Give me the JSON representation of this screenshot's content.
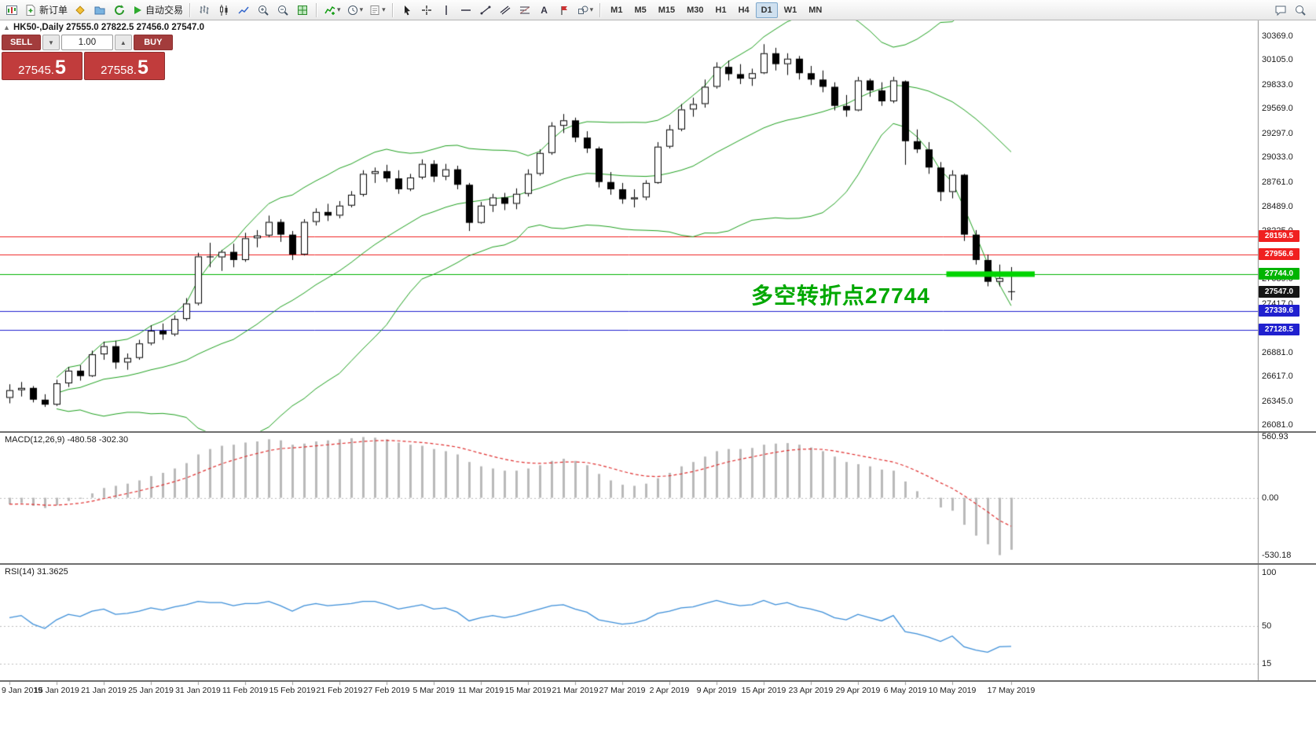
{
  "toolbar": {
    "new_order_label": "新订单",
    "autotrading_label": "自动交易",
    "text_tool_label": "A",
    "timeframes": [
      "M1",
      "M5",
      "M15",
      "M30",
      "H1",
      "H4",
      "D1",
      "W1",
      "MN"
    ],
    "active_timeframe": "D1"
  },
  "chart": {
    "title": "HK50-,Daily 27555.0 27822.5 27456.0 27547.0"
  },
  "one_click": {
    "sell_label": "SELL",
    "buy_label": "BUY",
    "volume": "1.00",
    "bid": "27545.5",
    "ask": "27558.5"
  },
  "annotation": {
    "text": "多空转折点27744",
    "color": "#00a800"
  },
  "price_scale": {
    "labels": [
      "30369.0",
      "30105.0",
      "29833.0",
      "29569.0",
      "29297.0",
      "29033.0",
      "28761.0",
      "28489.0",
      "28225.0",
      "27689.0",
      "27417.0",
      "26881.0",
      "26617.0",
      "26345.0",
      "26081.0"
    ],
    "badges": [
      {
        "text": "28159.5",
        "price": 28159.5,
        "bg": "#f02020",
        "kind": "level"
      },
      {
        "text": "27956.6",
        "price": 27956.6,
        "bg": "#f02020",
        "kind": "level"
      },
      {
        "text": "27744.0",
        "price": 27744.0,
        "bg": "#00b400",
        "kind": "level"
      },
      {
        "text": "27547.0",
        "price": 27547.0,
        "bg": "#151515",
        "kind": "current"
      },
      {
        "text": "27339.6",
        "price": 27339.6,
        "bg": "#2020cf",
        "kind": "level"
      },
      {
        "text": "27128.5",
        "price": 27128.5,
        "bg": "#2020cf",
        "kind": "level"
      }
    ]
  },
  "chart_data": {
    "type": "candlestick",
    "symbol": "HK50-",
    "period": "Daily",
    "current_bar": {
      "open": 27555.0,
      "high": 27822.5,
      "low": 27456.0,
      "close": 27547.0
    },
    "price_range": [
      26012,
      30542
    ],
    "candles": [
      [
        26380,
        26530,
        26320,
        26465
      ],
      [
        26465,
        26555,
        26395,
        26490
      ],
      [
        26490,
        26510,
        26330,
        26360
      ],
      [
        26360,
        26420,
        26280,
        26305
      ],
      [
        26305,
        26580,
        26290,
        26540
      ],
      [
        26540,
        26720,
        26500,
        26680
      ],
      [
        26680,
        26740,
        26570,
        26620
      ],
      [
        26620,
        26900,
        26610,
        26860
      ],
      [
        26860,
        27000,
        26800,
        26950
      ],
      [
        26950,
        27010,
        26700,
        26770
      ],
      [
        26770,
        26870,
        26690,
        26820
      ],
      [
        26820,
        27020,
        26800,
        26980
      ],
      [
        26980,
        27180,
        26960,
        27120
      ],
      [
        27120,
        27200,
        27020,
        27080
      ],
      [
        27080,
        27290,
        27060,
        27250
      ],
      [
        27250,
        27480,
        27230,
        27420
      ],
      [
        27420,
        27980,
        27400,
        27940
      ],
      [
        27940,
        28090,
        27820,
        27930
      ],
      [
        27930,
        28010,
        27780,
        27990
      ],
      [
        27990,
        28080,
        27820,
        27900
      ],
      [
        27900,
        28200,
        27880,
        28140
      ],
      [
        28140,
        28230,
        28040,
        28170
      ],
      [
        28170,
        28390,
        28150,
        28320
      ],
      [
        28320,
        28350,
        28100,
        28180
      ],
      [
        28180,
        28220,
        27900,
        27960
      ],
      [
        27960,
        28350,
        27950,
        28320
      ],
      [
        28320,
        28470,
        28280,
        28430
      ],
      [
        28430,
        28520,
        28330,
        28390
      ],
      [
        28390,
        28550,
        28360,
        28500
      ],
      [
        28500,
        28660,
        28480,
        28620
      ],
      [
        28620,
        28890,
        28600,
        28850
      ],
      [
        28850,
        28920,
        28750,
        28880
      ],
      [
        28880,
        28950,
        28760,
        28800
      ],
      [
        28800,
        28890,
        28630,
        28680
      ],
      [
        28680,
        28850,
        28660,
        28810
      ],
      [
        28810,
        29010,
        28790,
        28960
      ],
      [
        28960,
        29000,
        28760,
        28820
      ],
      [
        28820,
        28960,
        28780,
        28900
      ],
      [
        28900,
        28940,
        28680,
        28730
      ],
      [
        28730,
        28750,
        28220,
        28310
      ],
      [
        28310,
        28540,
        28300,
        28500
      ],
      [
        28500,
        28630,
        28430,
        28590
      ],
      [
        28590,
        28640,
        28450,
        28520
      ],
      [
        28520,
        28690,
        28460,
        28630
      ],
      [
        28630,
        28900,
        28600,
        28850
      ],
      [
        28850,
        29120,
        28830,
        29080
      ],
      [
        29080,
        29420,
        29060,
        29380
      ],
      [
        29380,
        29510,
        29300,
        29440
      ],
      [
        29440,
        29470,
        29200,
        29250
      ],
      [
        29250,
        29320,
        29080,
        29130
      ],
      [
        29130,
        29150,
        28700,
        28760
      ],
      [
        28760,
        28870,
        28620,
        28680
      ],
      [
        28680,
        28750,
        28520,
        28570
      ],
      [
        28570,
        28680,
        28480,
        28590
      ],
      [
        28590,
        28780,
        28560,
        28750
      ],
      [
        28750,
        29200,
        28740,
        29150
      ],
      [
        29150,
        29390,
        29130,
        29340
      ],
      [
        29340,
        29620,
        29320,
        29560
      ],
      [
        29560,
        29690,
        29480,
        29620
      ],
      [
        29620,
        29890,
        29580,
        29810
      ],
      [
        29810,
        30080,
        29790,
        30030
      ],
      [
        30030,
        30100,
        29880,
        29950
      ],
      [
        29950,
        30060,
        29840,
        29900
      ],
      [
        29900,
        30010,
        29820,
        29960
      ],
      [
        29960,
        30280,
        29950,
        30180
      ],
      [
        30180,
        30240,
        29990,
        30060
      ],
      [
        30060,
        30180,
        29940,
        30120
      ],
      [
        30120,
        30150,
        29890,
        29960
      ],
      [
        29960,
        30040,
        29830,
        29890
      ],
      [
        29890,
        29990,
        29750,
        29810
      ],
      [
        29810,
        29860,
        29550,
        29600
      ],
      [
        29600,
        29720,
        29480,
        29550
      ],
      [
        29550,
        29920,
        29540,
        29880
      ],
      [
        29880,
        29900,
        29700,
        29770
      ],
      [
        29770,
        29860,
        29600,
        29650
      ],
      [
        29650,
        29920,
        29630,
        29880
      ],
      [
        29870,
        29880,
        28950,
        29210
      ],
      [
        29210,
        29340,
        29080,
        29120
      ],
      [
        29120,
        29200,
        28850,
        28920
      ],
      [
        28920,
        28980,
        28550,
        28650
      ],
      [
        28650,
        28890,
        28580,
        28840
      ],
      [
        28840,
        28850,
        28110,
        28180
      ],
      [
        28180,
        28230,
        27850,
        27900
      ],
      [
        27900,
        27960,
        27610,
        27660
      ],
      [
        27660,
        27850,
        27610,
        27700
      ],
      [
        27555,
        27822.5,
        27456,
        27547
      ]
    ],
    "x_labels": [
      {
        "i": 0,
        "t": "9 Jan 2019"
      },
      {
        "i": 4,
        "t": "15 Jan 2019"
      },
      {
        "i": 8,
        "t": "21 Jan 2019"
      },
      {
        "i": 12,
        "t": "25 Jan 2019"
      },
      {
        "i": 16,
        "t": "31 Jan 2019"
      },
      {
        "i": 20,
        "t": "11 Feb 2019"
      },
      {
        "i": 24,
        "t": "15 Feb 2019"
      },
      {
        "i": 28,
        "t": "21 Feb 2019"
      },
      {
        "i": 32,
        "t": "27 Feb 2019"
      },
      {
        "i": 36,
        "t": "5 Mar 2019"
      },
      {
        "i": 40,
        "t": "11 Mar 2019"
      },
      {
        "i": 44,
        "t": "15 Mar 2019"
      },
      {
        "i": 48,
        "t": "21 Mar 2019"
      },
      {
        "i": 52,
        "t": "27 Mar 2019"
      },
      {
        "i": 56,
        "t": "2 Apr 2019"
      },
      {
        "i": 60,
        "t": "9 Apr 2019"
      },
      {
        "i": 64,
        "t": "15 Apr 2019"
      },
      {
        "i": 68,
        "t": "23 Apr 2019"
      },
      {
        "i": 72,
        "t": "29 Apr 2019"
      },
      {
        "i": 76,
        "t": "6 May 2019"
      },
      {
        "i": 80,
        "t": "10 May 2019"
      },
      {
        "i": 85,
        "t": "17 May 2019"
      }
    ],
    "levels": [
      {
        "price": 28159.5,
        "color": "#f02020"
      },
      {
        "price": 27956.6,
        "color": "#f02020"
      },
      {
        "price": 27744.0,
        "color": "#00b400"
      },
      {
        "price": 27339.6,
        "color": "#2020cf"
      },
      {
        "price": 27128.5,
        "color": "#2020cf"
      }
    ],
    "highlight_segment": {
      "price": 27744.0,
      "from_index": 79.5,
      "to_index": 87,
      "color": "#00d400",
      "thickness": 7
    },
    "bollinger": {
      "period": 20,
      "deviation": 2,
      "color": "#1fa11f"
    },
    "indicators": [
      {
        "name": "MACD",
        "label": "MACD(12,26,9) -480.58 -302.30",
        "axis_labels": [
          "560.93",
          "0.00",
          "-530.18"
        ],
        "range": [
          -605,
          600
        ],
        "histogram_color": "#b9b9b9",
        "signal_color": "#e03030",
        "histogram": [
          -60,
          -50,
          -75,
          -95,
          -70,
          -30,
          -10,
          40,
          90,
          110,
          130,
          160,
          200,
          230,
          270,
          320,
          400,
          450,
          480,
          490,
          510,
          520,
          540,
          530,
          490,
          500,
          520,
          530,
          540,
          550,
          560.93,
          555,
          540,
          510,
          490,
          480,
          450,
          430,
          400,
          330,
          290,
          270,
          250,
          250,
          270,
          300,
          340,
          360,
          340,
          300,
          220,
          160,
          120,
          110,
          130,
          180,
          230,
          290,
          330,
          380,
          430,
          450,
          450,
          460,
          490,
          500,
          505,
          490,
          465,
          430,
          380,
          330,
          310,
          290,
          260,
          250,
          150,
          60,
          -10,
          -90,
          -120,
          -250,
          -350,
          -430,
          -530.18,
          -480.58
        ]
      },
      {
        "name": "RSI",
        "label": "RSI(14) 31.3625",
        "axis_labels": [
          "100",
          "50",
          "15"
        ],
        "range": [
          0,
          107
        ],
        "line_color": "#3d8fd9",
        "levels": [
          50,
          15
        ],
        "values": [
          58,
          60,
          52,
          48,
          56,
          61,
          59,
          64,
          66,
          61,
          62,
          64,
          67,
          65,
          68,
          70,
          73,
          72,
          72,
          69,
          71,
          71,
          73,
          69,
          64,
          69,
          71,
          69,
          70,
          71,
          73,
          73,
          70,
          66,
          68,
          70,
          66,
          67,
          63,
          55,
          58,
          60,
          58,
          60,
          63,
          66,
          69,
          70,
          66,
          63,
          56,
          54,
          52,
          53,
          56,
          62,
          64,
          67,
          68,
          71,
          74,
          71,
          69,
          70,
          74,
          70,
          72,
          68,
          66,
          63,
          58,
          56,
          61,
          58,
          55,
          60,
          45,
          43,
          40,
          36,
          41,
          31,
          28,
          26,
          31,
          31.36
        ]
      }
    ]
  }
}
